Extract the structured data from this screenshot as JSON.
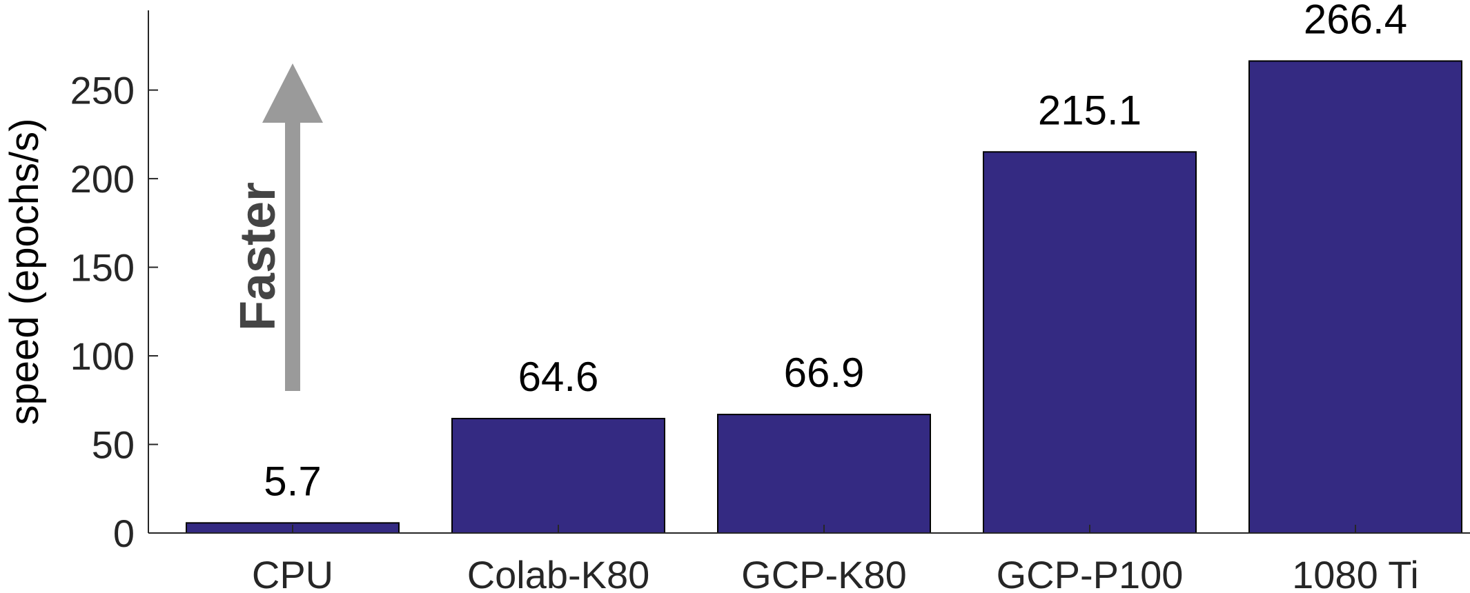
{
  "chart_data": {
    "type": "bar",
    "title": "",
    "xlabel": "",
    "ylabel": "speed (epochs/s)",
    "categories": [
      "CPU",
      "Colab-K80",
      "GCP-K80",
      "GCP-P100",
      "1080 Ti"
    ],
    "values": [
      5.7,
      64.6,
      66.9,
      215.1,
      266.4
    ],
    "data_labels": [
      "5.7",
      "64.6",
      "66.9",
      "215.1",
      "266.4"
    ],
    "ylim": [
      0,
      295
    ],
    "yticks": [
      0,
      50,
      100,
      150,
      200,
      250
    ],
    "ytick_labels": [
      "0",
      "50",
      "100",
      "150",
      "200",
      "250"
    ],
    "grid": false,
    "annotation": {
      "text": "Faster",
      "direction": "up"
    },
    "colors": {
      "bar": "#342A82",
      "bar_edge": "#000000",
      "arrow": "#9A9A9A",
      "axis": "#262626"
    }
  }
}
